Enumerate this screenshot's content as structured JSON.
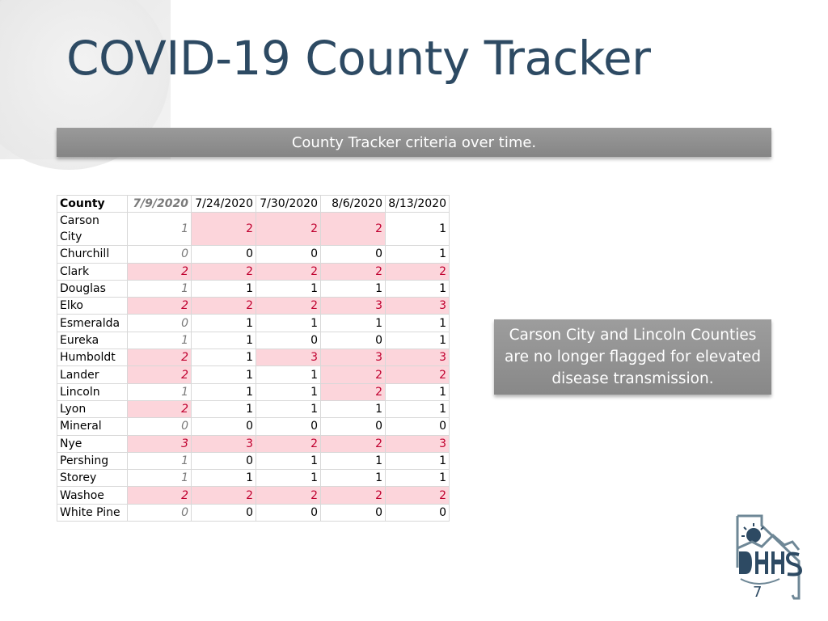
{
  "slide": {
    "title": "COVID-19 County Tracker",
    "subtitle": "County Tracker criteria over time.",
    "note": "Carson City and Lincoln Counties are no longer flagged for elevated disease transmission.",
    "page_number": "7",
    "highlight_color": "#fcd5db",
    "flag_text_color": "#c0002f"
  },
  "table": {
    "headers": [
      "County",
      "7/9/2020",
      "7/24/2020",
      "7/30/2020",
      "8/6/2020",
      "8/13/2020"
    ],
    "rows": [
      {
        "county": "Carson City",
        "values": [
          "1",
          "2",
          "2",
          "2",
          "1"
        ]
      },
      {
        "county": "Churchill",
        "values": [
          "0",
          "0",
          "0",
          "0",
          "1"
        ]
      },
      {
        "county": "Clark",
        "values": [
          "2",
          "2",
          "2",
          "2",
          "2"
        ]
      },
      {
        "county": "Douglas",
        "values": [
          "1",
          "1",
          "1",
          "1",
          "1"
        ]
      },
      {
        "county": "Elko",
        "values": [
          "2",
          "2",
          "2",
          "3",
          "3"
        ]
      },
      {
        "county": "Esmeralda",
        "values": [
          "0",
          "1",
          "1",
          "1",
          "1"
        ]
      },
      {
        "county": "Eureka",
        "values": [
          "1",
          "1",
          "0",
          "0",
          "1"
        ]
      },
      {
        "county": "Humboldt",
        "values": [
          "2",
          "1",
          "3",
          "3",
          "3"
        ]
      },
      {
        "county": "Lander",
        "values": [
          "2",
          "1",
          "1",
          "2",
          "2"
        ]
      },
      {
        "county": "Lincoln",
        "values": [
          "1",
          "1",
          "1",
          "2",
          "1"
        ]
      },
      {
        "county": "Lyon",
        "values": [
          "2",
          "1",
          "1",
          "1",
          "1"
        ]
      },
      {
        "county": "Mineral",
        "values": [
          "0",
          "0",
          "0",
          "0",
          "0"
        ]
      },
      {
        "county": "Nye",
        "values": [
          "3",
          "3",
          "2",
          "2",
          "3"
        ]
      },
      {
        "county": "Pershing",
        "values": [
          "1",
          "0",
          "1",
          "1",
          "1"
        ]
      },
      {
        "county": "Storey",
        "values": [
          "1",
          "1",
          "1",
          "1",
          "1"
        ]
      },
      {
        "county": "Washoe",
        "values": [
          "2",
          "2",
          "2",
          "2",
          "2"
        ]
      },
      {
        "county": "White Pine",
        "values": [
          "0",
          "0",
          "0",
          "0",
          "0"
        ]
      }
    ]
  },
  "logo": {
    "icon": "dhhs-logo-icon"
  }
}
